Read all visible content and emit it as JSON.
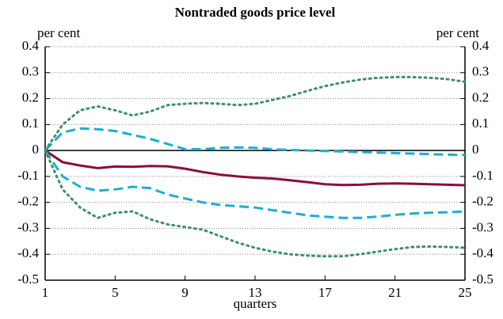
{
  "chart_data": {
    "type": "line",
    "title": "Nontraded goods price level",
    "ylabel": "per cent",
    "xlabel": "quarters",
    "x": [
      1,
      2,
      3,
      4,
      5,
      6,
      7,
      8,
      9,
      10,
      11,
      12,
      13,
      14,
      15,
      16,
      17,
      18,
      19,
      20,
      21,
      22,
      23,
      24,
      25
    ],
    "xlim": [
      1,
      25
    ],
    "xticks": [
      1,
      5,
      9,
      13,
      17,
      21,
      25
    ],
    "ylim": [
      -0.5,
      0.4
    ],
    "yticks": [
      0.4,
      0.3,
      0.2,
      0.1,
      0,
      -0.1,
      -0.2,
      -0.3,
      -0.4,
      -0.5
    ],
    "grid": true,
    "series": [
      {
        "color": "#8b0d3d",
        "dash": "solid",
        "values": [
          0,
          -0.045,
          -0.058,
          -0.068,
          -0.062,
          -0.063,
          -0.06,
          -0.061,
          -0.07,
          -0.083,
          -0.093,
          -0.1,
          -0.105,
          -0.108,
          -0.115,
          -0.122,
          -0.13,
          -0.133,
          -0.132,
          -0.128,
          -0.127,
          -0.128,
          -0.13,
          -0.132,
          -0.134
        ]
      },
      {
        "color": "#1aafcc",
        "dash": "dashed",
        "values": [
          0,
          0.07,
          0.085,
          0.082,
          0.075,
          0.06,
          0.045,
          0.025,
          0.005,
          0.005,
          0.01,
          0.012,
          0.01,
          0.005,
          0.002,
          0,
          -0.002,
          -0.004,
          -0.006,
          -0.008,
          -0.01,
          -0.012,
          -0.014,
          -0.016,
          -0.017
        ]
      },
      {
        "color": "#1aafcc",
        "dash": "dashed",
        "values": [
          0,
          -0.1,
          -0.14,
          -0.155,
          -0.15,
          -0.14,
          -0.145,
          -0.17,
          -0.185,
          -0.2,
          -0.21,
          -0.215,
          -0.22,
          -0.23,
          -0.24,
          -0.25,
          -0.255,
          -0.26,
          -0.26,
          -0.255,
          -0.248,
          -0.243,
          -0.24,
          -0.238,
          -0.235
        ]
      },
      {
        "color": "#3e8e6e",
        "dash": "dotted",
        "values": [
          0,
          0.1,
          0.155,
          0.17,
          0.155,
          0.135,
          0.15,
          0.175,
          0.18,
          0.183,
          0.18,
          0.175,
          0.18,
          0.195,
          0.21,
          0.23,
          0.248,
          0.262,
          0.273,
          0.28,
          0.283,
          0.283,
          0.28,
          0.275,
          0.265
        ]
      },
      {
        "color": "#3e8e6e",
        "dash": "dotted",
        "values": [
          0,
          -0.15,
          -0.22,
          -0.26,
          -0.24,
          -0.235,
          -0.265,
          -0.285,
          -0.295,
          -0.305,
          -0.33,
          -0.355,
          -0.375,
          -0.39,
          -0.4,
          -0.405,
          -0.408,
          -0.408,
          -0.4,
          -0.39,
          -0.38,
          -0.372,
          -0.37,
          -0.372,
          -0.375
        ]
      }
    ]
  }
}
